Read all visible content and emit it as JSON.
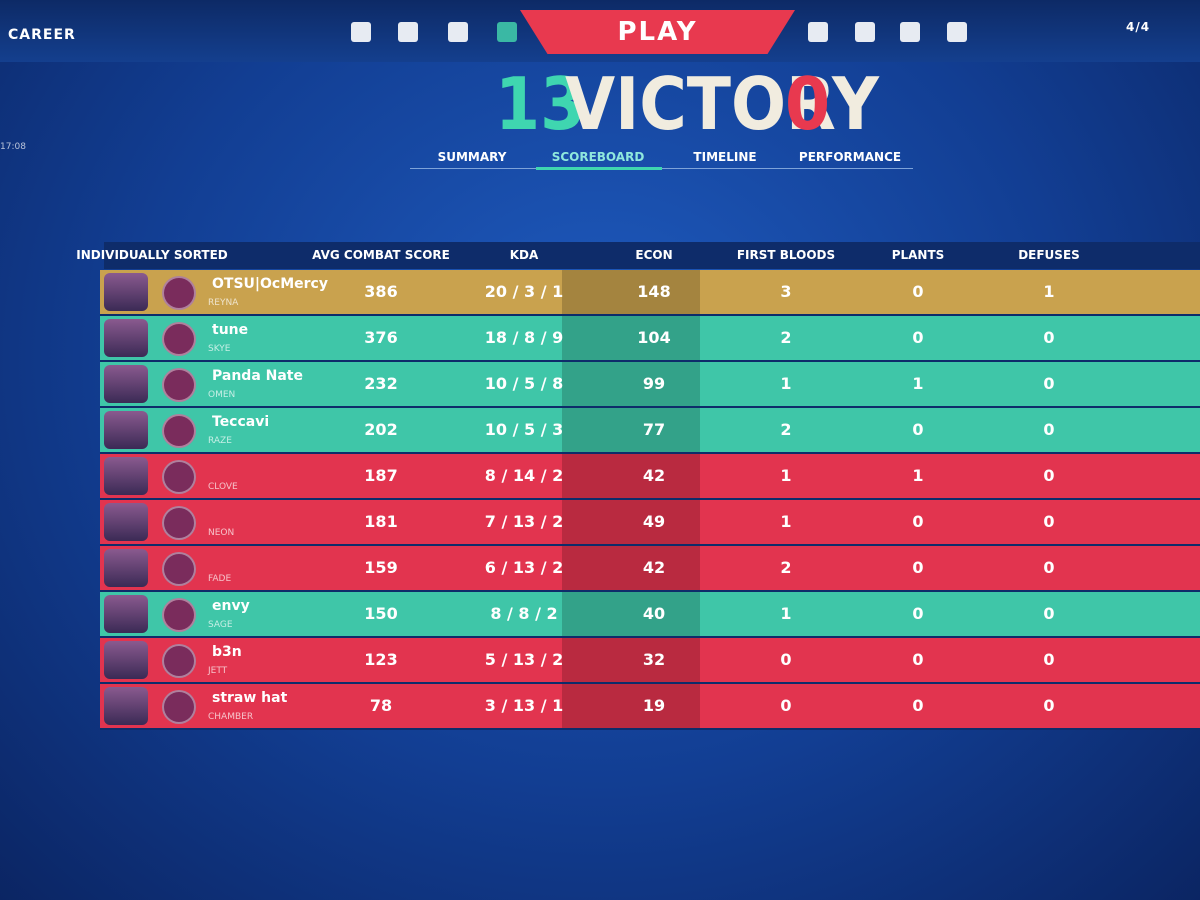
{
  "nav": {
    "left": "CAREER",
    "clock": "17:08",
    "play": "PLAY",
    "party": "4/4"
  },
  "result": {
    "team_score": 13,
    "title": "VICTORY",
    "enemy_score": 0
  },
  "tabs": {
    "items": [
      "SUMMARY",
      "SCOREBOARD",
      "TIMELINE",
      "PERFORMANCE"
    ],
    "active": 1
  },
  "table": {
    "columns": [
      "INDIVIDUALLY SORTED",
      "AVG COMBAT SCORE",
      "KDA",
      "ECON",
      "FIRST BLOODS",
      "PLANTS",
      "DEFUSES"
    ],
    "rows": [
      {
        "name": "OTSU|OcMercy",
        "agent": "REYNA",
        "acs": 386,
        "kda": "20 / 3 / 1",
        "econ": 148,
        "first_bloods": 3,
        "plants": 0,
        "defuses": 1,
        "color": "#c9a24e"
      },
      {
        "name": "tune",
        "agent": "SKYE",
        "acs": 376,
        "kda": "18 / 8 / 9",
        "econ": 104,
        "first_bloods": 2,
        "plants": 0,
        "defuses": 0,
        "color": "#3fc6a8"
      },
      {
        "name": "Panda Nate",
        "agent": "OMEN",
        "acs": 232,
        "kda": "10 / 5 / 8",
        "econ": 99,
        "first_bloods": 1,
        "plants": 1,
        "defuses": 0,
        "color": "#3fc6a8"
      },
      {
        "name": "Teccavi",
        "agent": "RAZE",
        "acs": 202,
        "kda": "10 / 5 / 3",
        "econ": 77,
        "first_bloods": 2,
        "plants": 0,
        "defuses": 0,
        "color": "#3fc6a8"
      },
      {
        "name": null,
        "agent": "CLOVE",
        "acs": 187,
        "kda": "8 / 14 / 2",
        "econ": 42,
        "first_bloods": 1,
        "plants": 1,
        "defuses": 0,
        "color": "#e2344f"
      },
      {
        "name": null,
        "agent": "NEON",
        "acs": 181,
        "kda": "7 / 13 / 2",
        "econ": 49,
        "first_bloods": 1,
        "plants": 0,
        "defuses": 0,
        "color": "#e2344f"
      },
      {
        "name": null,
        "agent": "FADE",
        "acs": 159,
        "kda": "6 / 13 / 2",
        "econ": 42,
        "first_bloods": 2,
        "plants": 0,
        "defuses": 0,
        "color": "#e2344f"
      },
      {
        "name": "envy",
        "agent": "SAGE",
        "acs": 150,
        "kda": "8 / 8 / 2",
        "econ": 40,
        "first_bloods": 1,
        "plants": 0,
        "defuses": 0,
        "color": "#3fc6a8"
      },
      {
        "name": "b3n",
        "agent": "JETT",
        "acs": 123,
        "kda": "5 / 13 / 2",
        "econ": 32,
        "first_bloods": 0,
        "plants": 0,
        "defuses": 0,
        "color": "#e2344f"
      },
      {
        "name": "straw hat",
        "agent": "CHAMBER",
        "acs": 78,
        "kda": "3 / 13 / 1",
        "econ": 19,
        "first_bloods": 0,
        "plants": 0,
        "defuses": 0,
        "color": "#e2344f"
      }
    ]
  }
}
